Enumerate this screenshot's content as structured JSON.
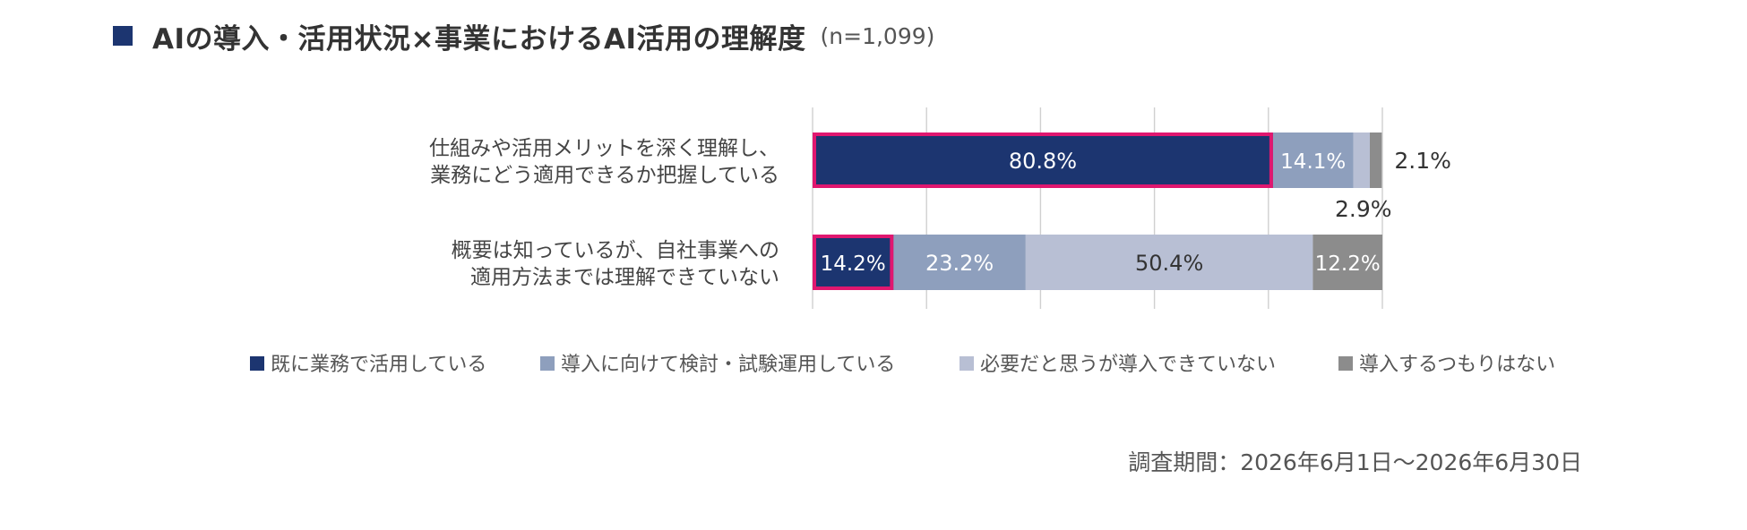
{
  "title": {
    "main": "AIの導入・活用状況×事業におけるAI活用の理解度",
    "n": "(n=1,099)"
  },
  "colors": {
    "accent": "#1c3570",
    "highlight": "#e0176f"
  },
  "chart_data": {
    "type": "bar",
    "orientation": "horizontal",
    "stacked": true,
    "percent_stacked": true,
    "categories": [
      [
        "仕組みや活用メリットを深く理解し、",
        "業務にどう適用できるか把握している"
      ],
      [
        "概要は知っているが、自社事業への",
        "適用方法までは理解できていない"
      ]
    ],
    "series": [
      {
        "name": "既に業務で活用している",
        "color": "#1c3570",
        "label_color": "#ffffff",
        "values": [
          80.8,
          14.2
        ]
      },
      {
        "name": "導入に向けて検討・試験運用している",
        "color": "#8e9fbd",
        "label_color": "#ffffff",
        "values": [
          14.1,
          23.2
        ]
      },
      {
        "name": "必要だと思うが導入できていない",
        "color": "#b8bfd4",
        "label_color": "#333333",
        "values": [
          2.9,
          50.4
        ]
      },
      {
        "name": "導入するつもりはない",
        "color": "#8c8c8c",
        "label_color": "#ffffff",
        "values": [
          2.1,
          12.2
        ]
      }
    ],
    "data_labels": [
      [
        "80.8%",
        "14.2%"
      ],
      [
        "14.1%",
        "23.2%"
      ],
      [
        "2.9%",
        "50.4%"
      ],
      [
        "2.1%",
        "12.2%"
      ]
    ],
    "highlighted_segments": [
      {
        "series": 0,
        "category": 0
      },
      {
        "series": 0,
        "category": 1
      }
    ],
    "xlim": [
      0,
      100
    ],
    "gridlines": [
      0,
      20,
      40,
      60,
      80,
      100
    ],
    "grid": true,
    "legend_position": "bottom"
  },
  "footer": {
    "survey_period": "調査期間：2026年6月1日～2026年6月30日"
  }
}
